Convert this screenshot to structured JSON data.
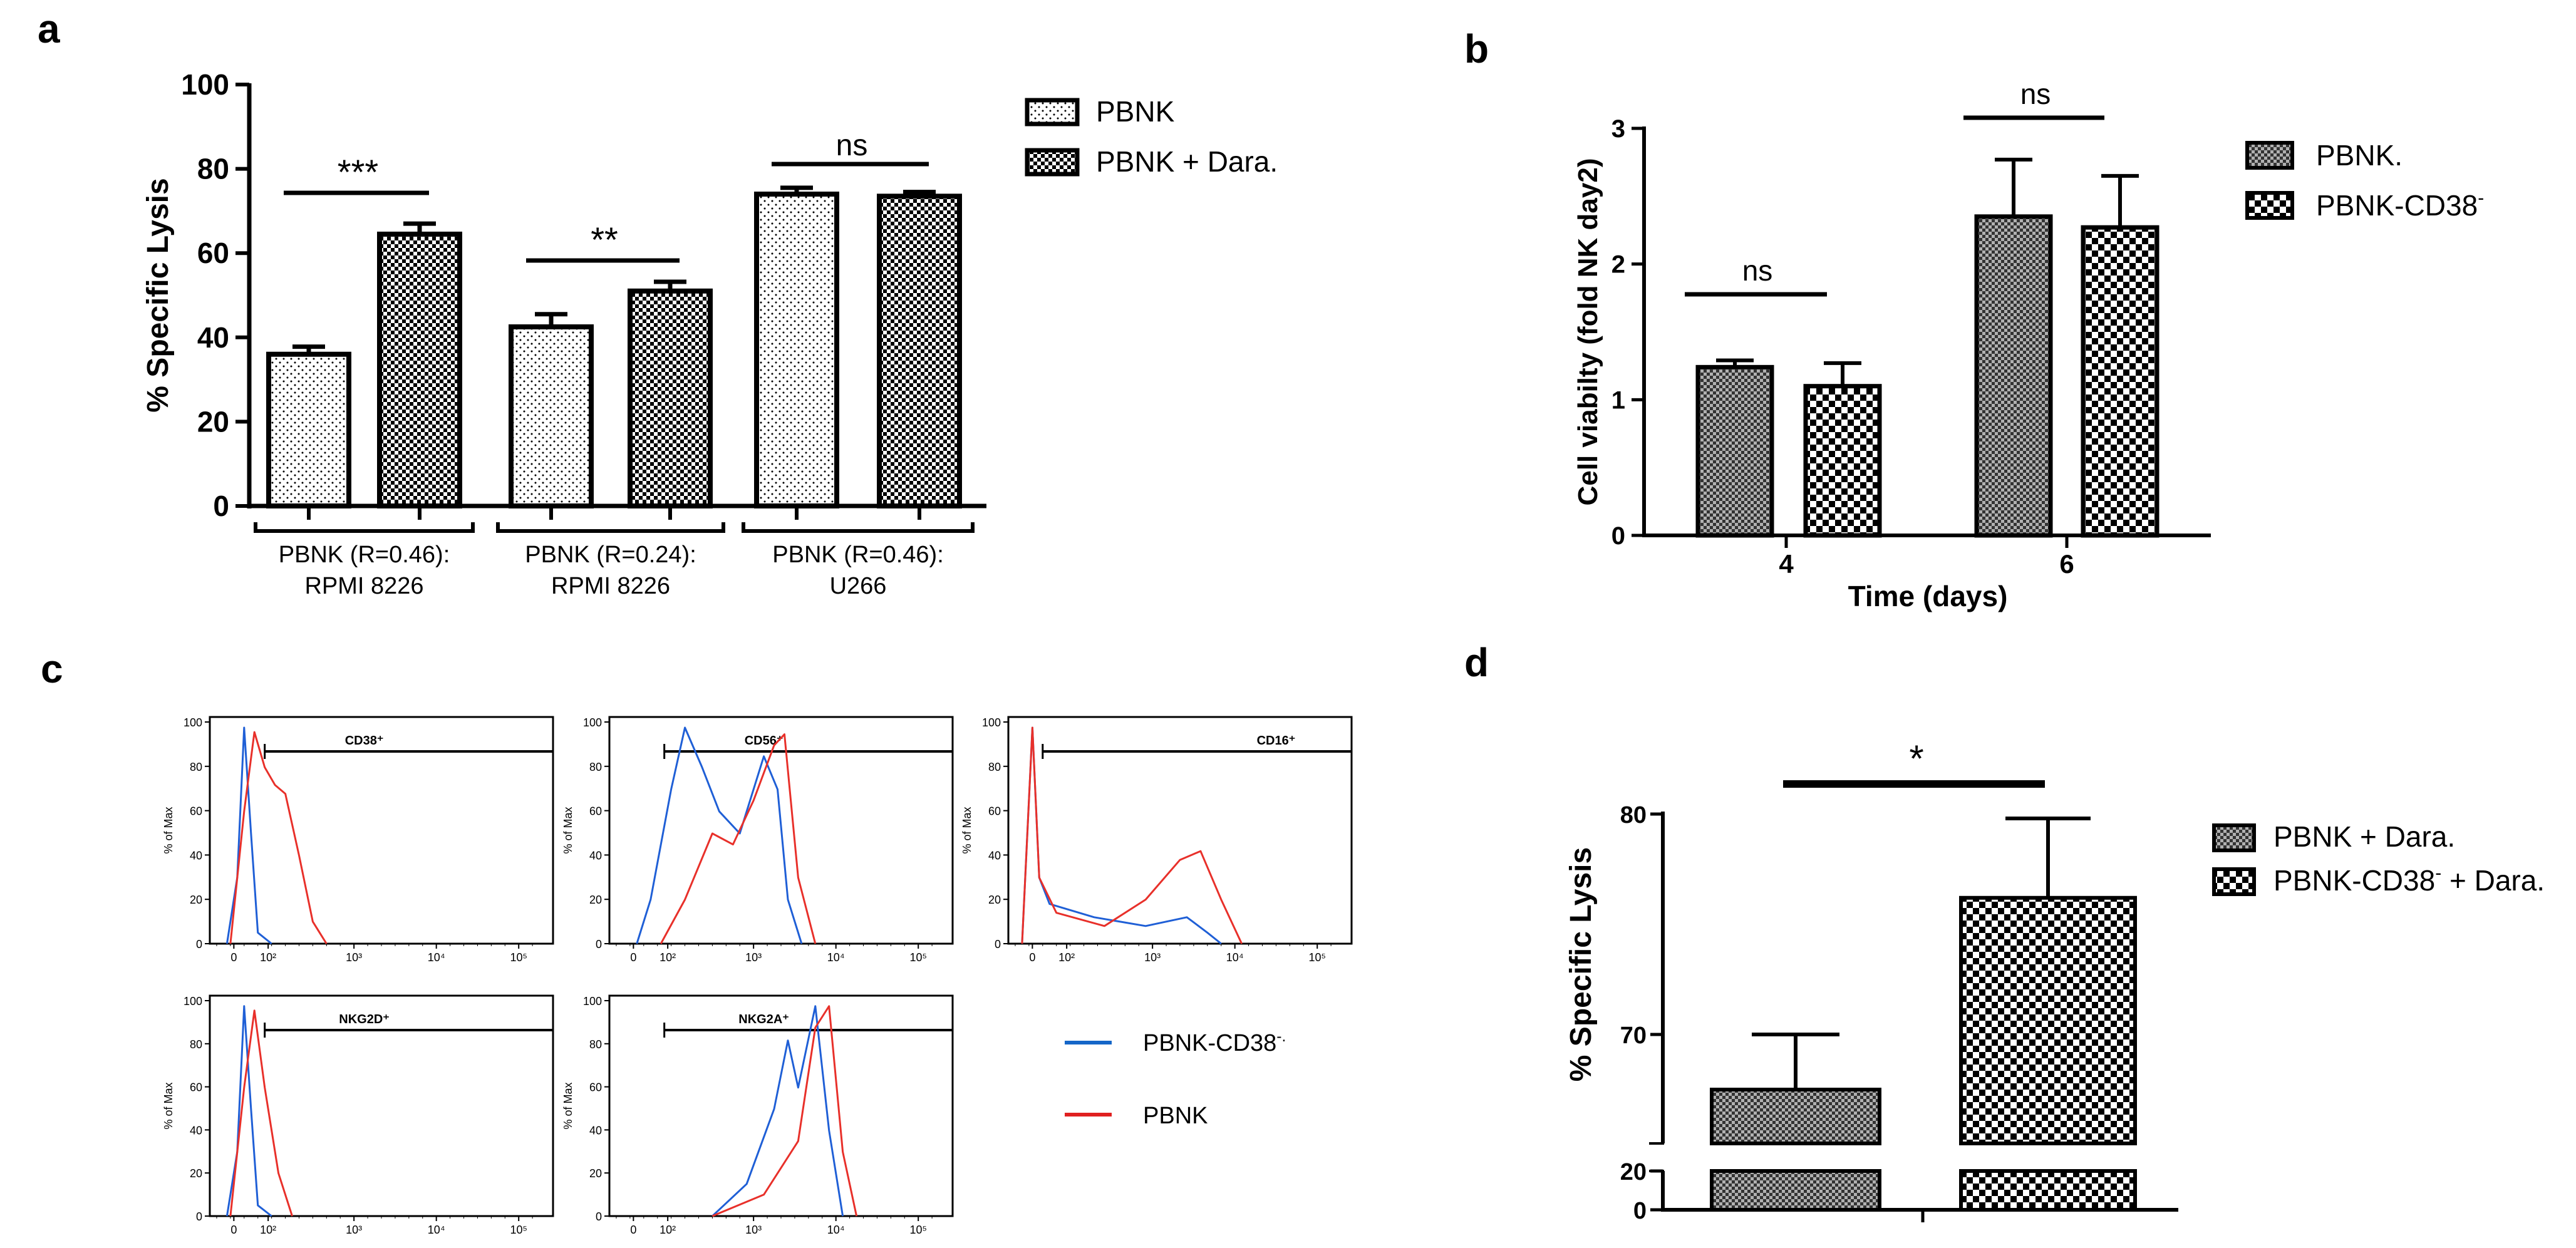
{
  "figure": {
    "panels": {
      "a": "a",
      "b": "b",
      "c": "c",
      "d": "d"
    }
  },
  "colors": {
    "axis": "#000000",
    "blue": "#1f5fd6",
    "red": "#e8302a",
    "legend_blue": "#1566c8",
    "legend_red": "#e02020"
  },
  "chart_data": [
    {
      "panel": "a",
      "type": "bar",
      "ylabel": "% Specific Lysis",
      "ylim": [
        0,
        100
      ],
      "yticks": [
        "0",
        "20",
        "40",
        "60",
        "80",
        "100"
      ],
      "groups": [
        {
          "label_line1": "PBNK (R=0.46):",
          "label_line2": "RPMI 8226"
        },
        {
          "label_line1": "PBNK (R=0.24):",
          "label_line2": "RPMI 8226"
        },
        {
          "label_line1": "PBNK (R=0.46):",
          "label_line2": "U266"
        }
      ],
      "series": [
        {
          "name": "PBNK",
          "values": [
            36,
            42.5,
            74
          ],
          "errors": [
            1.8,
            3,
            1.5
          ]
        },
        {
          "name": "PBNK + Dara.",
          "values": [
            64.5,
            51,
            73.5
          ],
          "errors": [
            2.5,
            2.2,
            1
          ]
        }
      ],
      "significance": [
        "***",
        "**",
        "ns"
      ]
    },
    {
      "panel": "b",
      "type": "bar",
      "xlabel": "Time (days)",
      "ylabel": "Cell viabilty (fold NK day2)",
      "ylim": [
        0,
        3
      ],
      "yticks": [
        "0",
        "1",
        "2",
        "3"
      ],
      "categories": [
        "4",
        "6"
      ],
      "series": [
        {
          "name": "PBNK.",
          "values": [
            1.24,
            2.35
          ],
          "errors": [
            0.05,
            0.42
          ]
        },
        {
          "name": "PBNK-CD38",
          "superscript": "-",
          "values": [
            1.1,
            2.27
          ],
          "errors": [
            0.17,
            0.38
          ]
        }
      ],
      "significance": [
        "ns",
        "ns"
      ]
    },
    {
      "panel": "c",
      "type": "line",
      "subtype": "flow cytometry histograms",
      "ylabel": "% of Max",
      "yticks": [
        "0",
        "20",
        "40",
        "60",
        "80",
        "100"
      ],
      "xticks": [
        "0",
        "10²",
        "10³",
        "10⁴",
        "10⁵"
      ],
      "legend": [
        {
          "name": "PBNK-CD38",
          "superscript": "-.",
          "color": "#1566c8"
        },
        {
          "name": "PBNK",
          "superscript": "",
          "color": "#e02020"
        }
      ],
      "histograms": [
        {
          "marker": "CD38⁺"
        },
        {
          "marker": "CD56⁺"
        },
        {
          "marker": "CD16⁺"
        },
        {
          "marker": "NKG2D⁺"
        },
        {
          "marker": "NKG2A⁺"
        }
      ]
    },
    {
      "panel": "d",
      "type": "bar",
      "ylabel": "% Specific Lysis",
      "broken_axis": true,
      "yticks": [
        "0",
        "20",
        "70",
        "80"
      ],
      "series": [
        {
          "name": "PBNK + Dara.",
          "value": 67.5,
          "error": 2.5
        },
        {
          "name": "PBNK-CD38",
          "superscript": "-",
          "suffix": " + Dara.",
          "value": 76.2,
          "error": 3.6
        }
      ],
      "significance": [
        "*"
      ]
    }
  ]
}
